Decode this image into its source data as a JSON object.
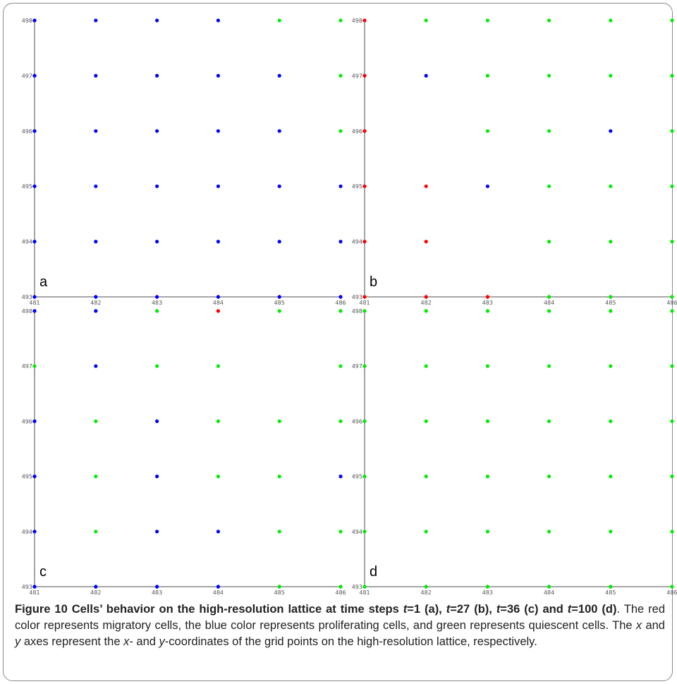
{
  "colors": {
    "migratory": "#ff0000",
    "proliferating": "#0000ff",
    "quiescent": "#00ee00",
    "axis": "#888888"
  },
  "chart_data": [
    {
      "type": "scatter",
      "panel_label": "a",
      "xlim": [
        481,
        486
      ],
      "ylim": [
        493,
        498
      ],
      "xticks": [
        "481",
        "482",
        "483",
        "484",
        "485",
        "486"
      ],
      "yticks": [
        "493",
        "494",
        "495",
        "496",
        "497",
        "498"
      ],
      "legend_map": {
        "r": "migratory",
        "b": "proliferating",
        "g": "quiescent"
      },
      "grid_rows_top_to_bottom": [
        {
          "y": 498,
          "cells": [
            "b",
            "b",
            "b",
            "b",
            "g",
            "g"
          ]
        },
        {
          "y": 497,
          "cells": [
            "b",
            "b",
            "b",
            "b",
            "b",
            "g"
          ]
        },
        {
          "y": 496,
          "cells": [
            "b",
            "b",
            "b",
            "b",
            "b",
            "g"
          ]
        },
        {
          "y": 495,
          "cells": [
            "b",
            "b",
            "b",
            "b",
            "b",
            "b"
          ]
        },
        {
          "y": 494,
          "cells": [
            "b",
            "b",
            "b",
            "b",
            "b",
            "b"
          ]
        },
        {
          "y": 493,
          "cells": [
            "b",
            "b",
            "b",
            "b",
            "b",
            "b"
          ]
        }
      ]
    },
    {
      "type": "scatter",
      "panel_label": "b",
      "xlim": [
        481,
        486
      ],
      "ylim": [
        493,
        498
      ],
      "xticks": [
        "481",
        "482",
        "483",
        "484",
        "485",
        "486"
      ],
      "yticks": [
        "493",
        "494",
        "495",
        "496",
        "497",
        "498"
      ],
      "legend_map": {
        "r": "migratory",
        "b": "proliferating",
        "g": "quiescent"
      },
      "grid_rows_top_to_bottom": [
        {
          "y": 498,
          "cells": [
            "r",
            "g",
            "g",
            "g",
            "g",
            "g"
          ]
        },
        {
          "y": 497,
          "cells": [
            "r",
            "b",
            "g",
            "g",
            "g",
            "g"
          ]
        },
        {
          "y": 496,
          "cells": [
            "r",
            null,
            "g",
            "g",
            "b",
            "g"
          ]
        },
        {
          "y": 495,
          "cells": [
            "r",
            "r",
            "b",
            "g",
            "g",
            "g"
          ]
        },
        {
          "y": 494,
          "cells": [
            "r",
            "r",
            null,
            "g",
            "g",
            "g"
          ]
        },
        {
          "y": 493,
          "cells": [
            "r",
            "r",
            "r",
            "g",
            "g",
            "g"
          ]
        }
      ]
    },
    {
      "type": "scatter",
      "panel_label": "c",
      "xlim": [
        481,
        486
      ],
      "ylim": [
        493,
        498
      ],
      "xticks": [
        "481",
        "482",
        "483",
        "484",
        "485",
        "486"
      ],
      "yticks": [
        "493",
        "494",
        "495",
        "496",
        "497",
        "498"
      ],
      "legend_map": {
        "r": "migratory",
        "b": "proliferating",
        "g": "quiescent"
      },
      "grid_rows_top_to_bottom": [
        {
          "y": 498,
          "cells": [
            "b",
            "b",
            "g",
            "r",
            "g",
            "g"
          ]
        },
        {
          "y": 497,
          "cells": [
            "g",
            "b",
            "g",
            "g",
            null,
            "g"
          ]
        },
        {
          "y": 496,
          "cells": [
            "b",
            "g",
            "b",
            "g",
            "g",
            "g"
          ]
        },
        {
          "y": 495,
          "cells": [
            "b",
            "g",
            "b",
            "g",
            "g",
            "b"
          ]
        },
        {
          "y": 494,
          "cells": [
            "b",
            "g",
            "b",
            "b",
            "g",
            "g"
          ]
        },
        {
          "y": 493,
          "cells": [
            "b",
            "b",
            "b",
            "b",
            "g",
            "g"
          ]
        }
      ]
    },
    {
      "type": "scatter",
      "panel_label": "d",
      "xlim": [
        481,
        486
      ],
      "ylim": [
        493,
        498
      ],
      "xticks": [
        "481",
        "482",
        "483",
        "484",
        "485",
        "486"
      ],
      "yticks": [
        "493",
        "494",
        "495",
        "496",
        "497",
        "498"
      ],
      "legend_map": {
        "r": "migratory",
        "b": "proliferating",
        "g": "quiescent"
      },
      "grid_rows_top_to_bottom": [
        {
          "y": 498,
          "cells": [
            "g",
            "g",
            "g",
            "g",
            "g",
            "g"
          ]
        },
        {
          "y": 497,
          "cells": [
            "g",
            "g",
            "g",
            "g",
            "g",
            "g"
          ]
        },
        {
          "y": 496,
          "cells": [
            "g",
            "g",
            "g",
            "g",
            "g",
            "g"
          ]
        },
        {
          "y": 495,
          "cells": [
            "g",
            "g",
            "g",
            "g",
            "g",
            "g"
          ]
        },
        {
          "y": 494,
          "cells": [
            "g",
            "g",
            "g",
            "g",
            "g",
            "g"
          ]
        },
        {
          "y": 493,
          "cells": [
            "g",
            "g",
            "g",
            "g",
            "g",
            "g"
          ]
        }
      ]
    }
  ],
  "caption": {
    "title_parts": [
      {
        "t": "Figure 10 Cells’ behavior on the high-resolution lattice at time steps ",
        "s": ""
      },
      {
        "t": "t",
        "s": "i"
      },
      {
        "t": "=1 (a), ",
        "s": ""
      },
      {
        "t": "t",
        "s": "i"
      },
      {
        "t": "=27 (b), ",
        "s": ""
      },
      {
        "t": "t",
        "s": "i"
      },
      {
        "t": "=36 (c) and ",
        "s": ""
      },
      {
        "t": "t",
        "s": "i"
      },
      {
        "t": "=100 (d)",
        "s": ""
      }
    ],
    "body_parts": [
      {
        "t": ". The red color represents migratory cells, the blue color represents proliferating cells, and green represents quiescent cells. The ",
        "s": ""
      },
      {
        "t": "x",
        "s": "i"
      },
      {
        "t": " and ",
        "s": ""
      },
      {
        "t": "y",
        "s": "i"
      },
      {
        "t": " axes represent the ",
        "s": ""
      },
      {
        "t": "x",
        "s": "i"
      },
      {
        "t": "- and ",
        "s": ""
      },
      {
        "t": "y",
        "s": "i"
      },
      {
        "t": "-coordinates of the grid points on the high-resolution lattice, respectively.",
        "s": ""
      }
    ]
  }
}
